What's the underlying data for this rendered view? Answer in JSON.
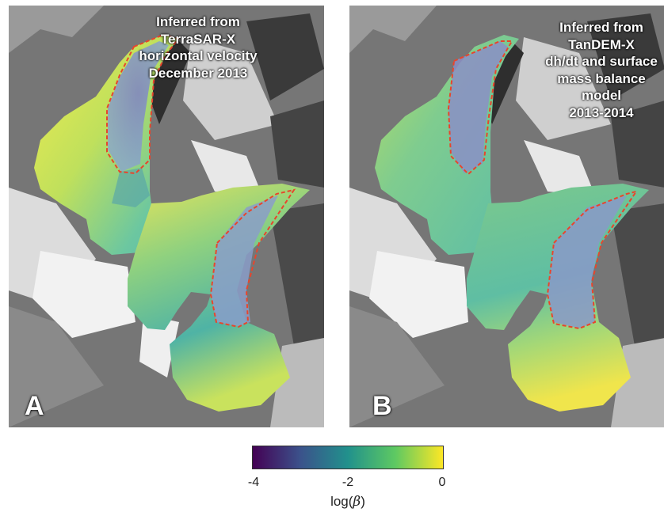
{
  "panels": [
    {
      "letter": "A",
      "caption": [
        "Inferred from",
        "TerraSAR-X",
        "horizontal velocity",
        "December 2013"
      ]
    },
    {
      "letter": "B",
      "caption": [
        "Inferred from",
        "TanDEM-X",
        "dh/dt and surface",
        "mass balance",
        "model",
        "2013-2014"
      ]
    }
  ],
  "colorbar": {
    "colormap": "viridis",
    "min": -4,
    "max": 0,
    "ticks": [
      "-4",
      "-2",
      "0"
    ],
    "label_prefix": "log(",
    "label_symbol": "β",
    "label_suffix": ")"
  },
  "colors": {
    "outline": "#e8452c",
    "viridis": [
      "#440154",
      "#3b528b",
      "#21918c",
      "#5ec962",
      "#fde725"
    ]
  }
}
